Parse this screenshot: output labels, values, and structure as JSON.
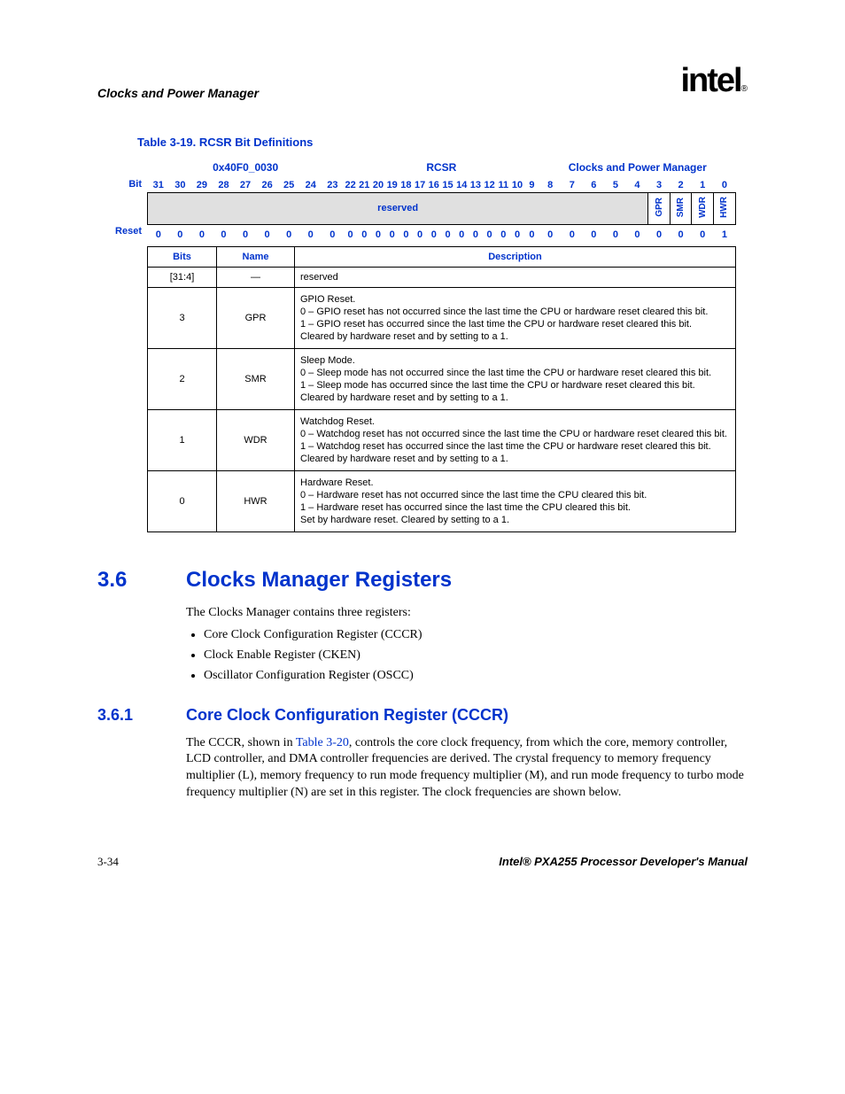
{
  "header": {
    "section": "Clocks and Power Manager",
    "logo": "intel",
    "logo_sub": "®"
  },
  "table_caption": "Table 3-19. RCSR Bit Definitions",
  "reg": {
    "address": "0x40F0_0030",
    "name": "RCSR",
    "module": "Clocks and Power Manager",
    "bit_label": "Bit",
    "reset_label": "Reset",
    "reserved_label": "reserved",
    "bits": [
      "31",
      "30",
      "29",
      "28",
      "27",
      "26",
      "25",
      "24",
      "23",
      "22",
      "21",
      "20",
      "19",
      "18",
      "17",
      "16",
      "15",
      "14",
      "13",
      "12",
      "11",
      "10",
      "9",
      "8",
      "7",
      "6",
      "5",
      "4",
      "3",
      "2",
      "1",
      "0"
    ],
    "fields": [
      "GPR",
      "SMR",
      "WDR",
      "HWR"
    ],
    "reset_values": [
      "0",
      "0",
      "0",
      "0",
      "0",
      "0",
      "0",
      "0",
      "0",
      "0",
      "0",
      "0",
      "0",
      "0",
      "0",
      "0",
      "0",
      "0",
      "0",
      "0",
      "0",
      "0",
      "0",
      "0",
      "0",
      "0",
      "0",
      "0",
      "0",
      "0",
      "0",
      "1"
    ]
  },
  "desc_headers": {
    "bits": "Bits",
    "name": "Name",
    "description": "Description"
  },
  "rows": [
    {
      "bits": "[31:4]",
      "name": "—",
      "desc_html": "reserved"
    },
    {
      "bits": "3",
      "name": "GPR",
      "title": "GPIO Reset.",
      "v0": "0 – GPIO reset has not occurred since the last time the CPU or hardware reset cleared this bit.",
      "v1": "1 – GPIO reset has occurred since the last time the CPU or hardware reset cleared this bit.",
      "clear": "Cleared by hardware reset and by setting to a 1."
    },
    {
      "bits": "2",
      "name": "SMR",
      "title": "Sleep Mode.",
      "v0": "0 – Sleep mode has not occurred since the last time the CPU or hardware reset cleared this bit.",
      "v1": "1 – Sleep mode has occurred since the last time the CPU or hardware reset cleared this bit.",
      "clear": "Cleared by hardware reset and by setting to a 1."
    },
    {
      "bits": "1",
      "name": "WDR",
      "title": "Watchdog Reset.",
      "v0": "0 – Watchdog reset has not occurred since the last time the CPU or hardware reset cleared this bit.",
      "v1": "1 – Watchdog reset has occurred since the last time the CPU or hardware reset cleared this bit.",
      "clear": "Cleared by hardware reset and by setting to a 1."
    },
    {
      "bits": "0",
      "name": "HWR",
      "title": "Hardware Reset.",
      "v0": "0 – Hardware reset has not occurred since the last time the CPU cleared this bit.",
      "v1": "1 – Hardware reset has occurred since the last time the CPU cleared this bit.",
      "clear": "Set by hardware reset. Cleared by setting to a 1."
    }
  ],
  "section36": {
    "num": "3.6",
    "title": "Clocks Manager Registers",
    "intro": "The Clocks Manager contains three registers:",
    "items": [
      "Core Clock Configuration Register (CCCR)",
      "Clock Enable Register (CKEN)",
      "Oscillator Configuration Register (OSCC)"
    ]
  },
  "section361": {
    "num": "3.6.1",
    "title": "Core Clock Configuration Register (CCCR)",
    "para_pre": "The CCCR, shown in ",
    "link": "Table 3-20",
    "para_post": ", controls the core clock frequency, from which the core, memory controller, LCD controller, and DMA controller frequencies are derived. The crystal frequency to memory frequency multiplier (L), memory frequency to run mode frequency multiplier (M), and run mode frequency to turbo mode frequency multiplier (N) are set in this register. The clock frequencies are shown below."
  },
  "footer": {
    "page": "3-34",
    "manual": "Intel® PXA255 Processor Developer's Manual"
  },
  "colors": {
    "link_blue": "#0033cc",
    "reserved_bg": "#e0e0e0",
    "text": "#000000",
    "bg": "#ffffff"
  }
}
